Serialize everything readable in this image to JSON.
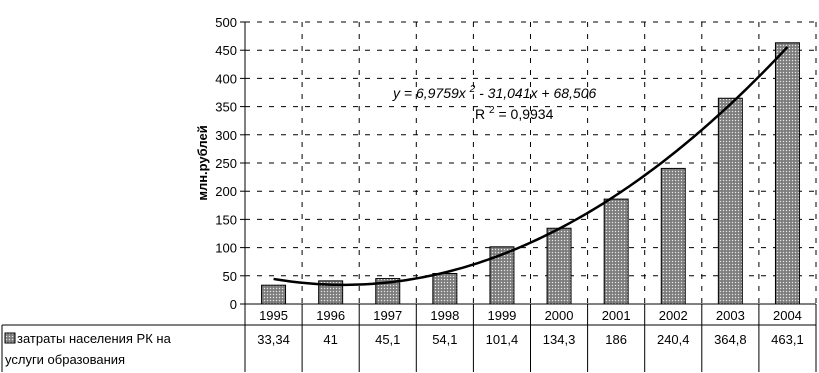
{
  "chart_data": {
    "type": "bar",
    "categories": [
      "1995",
      "1996",
      "1997",
      "1998",
      "1999",
      "2000",
      "2001",
      "2002",
      "2003",
      "2004"
    ],
    "series": [
      {
        "name": "затраты населения  РК на услуги образования",
        "values": [
          33.34,
          41,
          45.1,
          54.1,
          101.4,
          134.3,
          186,
          240.4,
          364.8,
          463.1
        ],
        "labels": [
          "33,34",
          "41",
          "45,1",
          "54,1",
          "101,4",
          "134,3",
          "186",
          "240,4",
          "364,8",
          "463,1"
        ],
        "legend_line1": "затраты населения  РК на",
        "legend_line2": "услуги образования"
      }
    ],
    "title": "",
    "xlabel": "",
    "ylabel": "млн.рублей",
    "ylim": [
      0,
      500
    ],
    "yticks": [
      "0",
      "50",
      "100",
      "150",
      "200",
      "250",
      "300",
      "350",
      "400",
      "450",
      "500"
    ],
    "grid": "dashed",
    "data_table": true,
    "trendline": {
      "type": "polynomial",
      "a": 6.9759,
      "b": -31.041,
      "c": 68.506,
      "equation_prefix": "y = 6,9759x",
      "equation_exp": "2",
      "equation_suffix": " - 31,041x + 68,506",
      "r2_prefix": "R",
      "r2_exp": "2",
      "r2_suffix": " = 0,9934"
    },
    "colors": {
      "bar_fill": "#8a8a8a",
      "bar_dots": "#ffffff",
      "axis": "#000000",
      "grid": "#000000"
    }
  }
}
